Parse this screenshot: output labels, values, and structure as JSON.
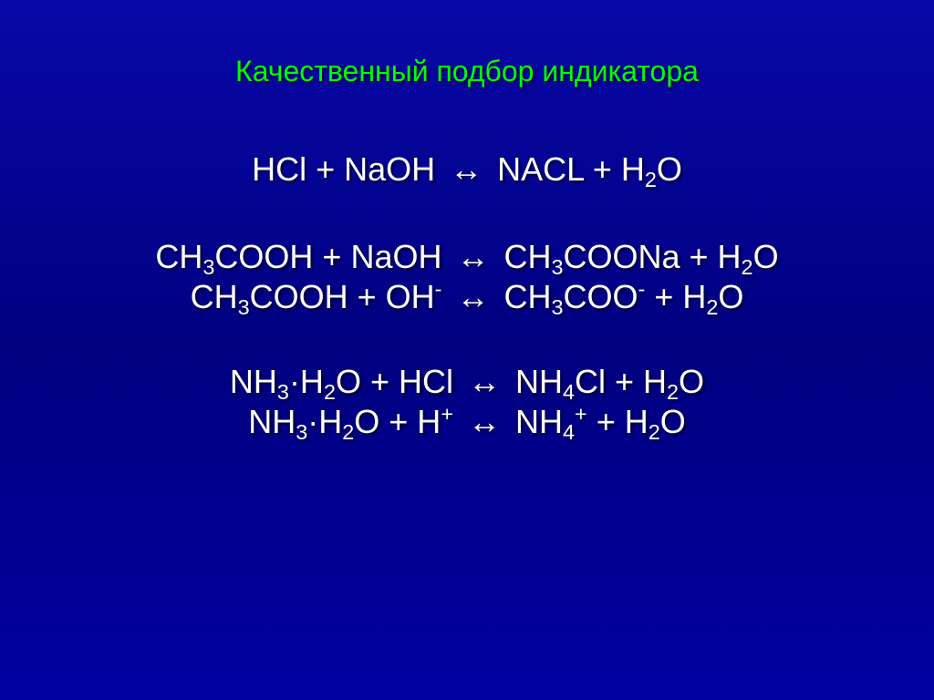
{
  "slide": {
    "title_text": "Качественный подбор индикатора",
    "title_color": "#00ff00",
    "body_color": "#ffffff",
    "background_gradient_top": "#0808a8",
    "background_gradient_bottom": "#0000a0",
    "font_family": "Arial",
    "title_fontsize_pt": 32,
    "equation_fontsize_pt": 36,
    "equations": {
      "block1": [
        {
          "lhs": [
            {
              "t": "HCl"
            },
            {
              "t": " + "
            },
            {
              "t": "NaOH"
            }
          ],
          "op": "↔",
          "rhs": [
            {
              "caps": "NACL"
            },
            {
              "t": " + "
            },
            {
              "t": "H",
              "sub": "2"
            },
            {
              "t": "O"
            }
          ]
        }
      ],
      "block2": [
        {
          "lhs": [
            {
              "t": "CH",
              "sub": "3"
            },
            {
              "t": "COOH"
            },
            {
              "t": " + "
            },
            {
              "t": "NaOH"
            }
          ],
          "op": "↔",
          "rhs": [
            {
              "t": "CH",
              "sub": "3"
            },
            {
              "t": "COONa"
            },
            {
              "t": " + "
            },
            {
              "t": "H",
              "sub": "2"
            },
            {
              "t": "O"
            }
          ]
        },
        {
          "lhs": [
            {
              "t": "CH",
              "sub": "3"
            },
            {
              "t": "COOH"
            },
            {
              "t": " + "
            },
            {
              "t": "OH",
              "sup": "-"
            }
          ],
          "op": "↔",
          "rhs": [
            {
              "t": "CH",
              "sub": "3"
            },
            {
              "t": "COO",
              "sup": "-"
            },
            {
              "t": " + "
            },
            {
              "t": "H",
              "sub": "2"
            },
            {
              "t": "O"
            }
          ]
        }
      ],
      "block3": [
        {
          "lhs": [
            {
              "t": "NH",
              "sub": "3"
            },
            {
              "dot": "·"
            },
            {
              "t": "H",
              "sub": "2"
            },
            {
              "t": "O"
            },
            {
              "t": " + "
            },
            {
              "t": "HCl"
            }
          ],
          "op": "↔",
          "rhs": [
            {
              "t": "NH",
              "sub": "4"
            },
            {
              "t": "Cl"
            },
            {
              "t": " + "
            },
            {
              "t": "H",
              "sub": "2"
            },
            {
              "t": "O"
            }
          ]
        },
        {
          "lhs": [
            {
              "t": "NH",
              "sub": "3"
            },
            {
              "dot": "·"
            },
            {
              "t": "H",
              "sub": "2"
            },
            {
              "t": "O"
            },
            {
              "t": " + "
            },
            {
              "t": "H",
              "sup": "+"
            }
          ],
          "op": "↔",
          "rhs": [
            {
              "t": "NH",
              "sub": "4",
              "sup": "+"
            },
            {
              "t": " + "
            },
            {
              "t": "H",
              "sub": "2"
            },
            {
              "t": "O"
            }
          ]
        }
      ]
    }
  }
}
